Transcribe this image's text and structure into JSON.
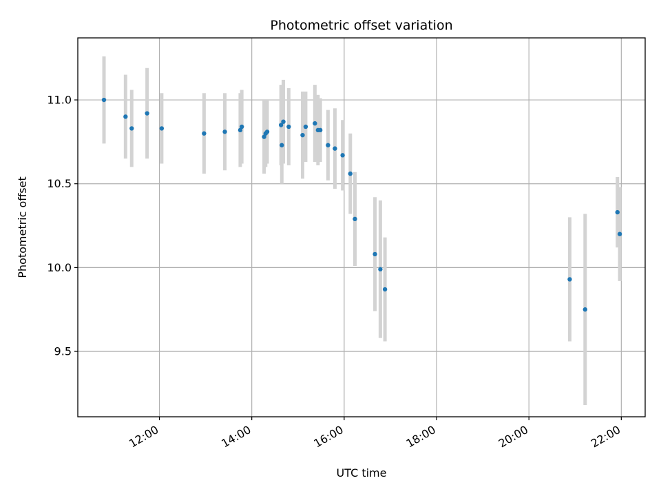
{
  "chart_data": {
    "type": "scatter",
    "title": "Photometric offset variation",
    "xlabel": "UTC time",
    "ylabel": "Photometric offset",
    "xlim": [
      "10:14",
      "22:31"
    ],
    "ylim": [
      9.11,
      11.37
    ],
    "x_ticks": [
      "12:00",
      "14:00",
      "16:00",
      "18:00",
      "20:00",
      "22:00"
    ],
    "y_ticks": [
      "9.5",
      "10.0",
      "10.5",
      "11.0"
    ],
    "grid": true,
    "colors": {
      "point": "#1f77b4",
      "errorbar": "#d3d3d3",
      "grid": "#b0b0b0"
    },
    "points": [
      {
        "x": "10:48",
        "y": 11.0,
        "err": 0.26
      },
      {
        "x": "11:16",
        "y": 10.9,
        "err": 0.25
      },
      {
        "x": "11:24",
        "y": 10.83,
        "err": 0.23
      },
      {
        "x": "11:44",
        "y": 10.92,
        "err": 0.27
      },
      {
        "x": "12:03",
        "y": 10.83,
        "err": 0.21
      },
      {
        "x": "12:58",
        "y": 10.8,
        "err": 0.24
      },
      {
        "x": "13:25",
        "y": 10.81,
        "err": 0.23
      },
      {
        "x": "13:45",
        "y": 10.82,
        "err": 0.22
      },
      {
        "x": "13:47",
        "y": 10.84,
        "err": 0.22
      },
      {
        "x": "14:16",
        "y": 10.78,
        "err": 0.22
      },
      {
        "x": "14:18",
        "y": 10.8,
        "err": 0.2
      },
      {
        "x": "14:20",
        "y": 10.81,
        "err": 0.19
      },
      {
        "x": "14:38",
        "y": 10.85,
        "err": 0.24
      },
      {
        "x": "14:39",
        "y": 10.73,
        "err": 0.23
      },
      {
        "x": "14:41",
        "y": 10.87,
        "err": 0.25
      },
      {
        "x": "14:48",
        "y": 10.84,
        "err": 0.23
      },
      {
        "x": "15:06",
        "y": 10.79,
        "err": 0.26
      },
      {
        "x": "15:10",
        "y": 10.84,
        "err": 0.21
      },
      {
        "x": "15:22",
        "y": 10.86,
        "err": 0.23
      },
      {
        "x": "15:26",
        "y": 10.82,
        "err": 0.21
      },
      {
        "x": "15:29",
        "y": 10.82,
        "err": 0.19
      },
      {
        "x": "15:39",
        "y": 10.73,
        "err": 0.21
      },
      {
        "x": "15:48",
        "y": 10.71,
        "err": 0.24
      },
      {
        "x": "15:58",
        "y": 10.67,
        "err": 0.21
      },
      {
        "x": "16:08",
        "y": 10.56,
        "err": 0.24
      },
      {
        "x": "16:14",
        "y": 10.29,
        "err": 0.28
      },
      {
        "x": "16:40",
        "y": 10.08,
        "err": 0.34
      },
      {
        "x": "16:47",
        "y": 9.99,
        "err": 0.41
      },
      {
        "x": "16:53",
        "y": 9.87,
        "err": 0.31
      },
      {
        "x": "20:53",
        "y": 9.93,
        "err": 0.37
      },
      {
        "x": "21:13",
        "y": 9.75,
        "err": 0.57
      },
      {
        "x": "21:55",
        "y": 10.33,
        "err": 0.21
      },
      {
        "x": "21:58",
        "y": 10.2,
        "err": 0.28
      }
    ]
  }
}
